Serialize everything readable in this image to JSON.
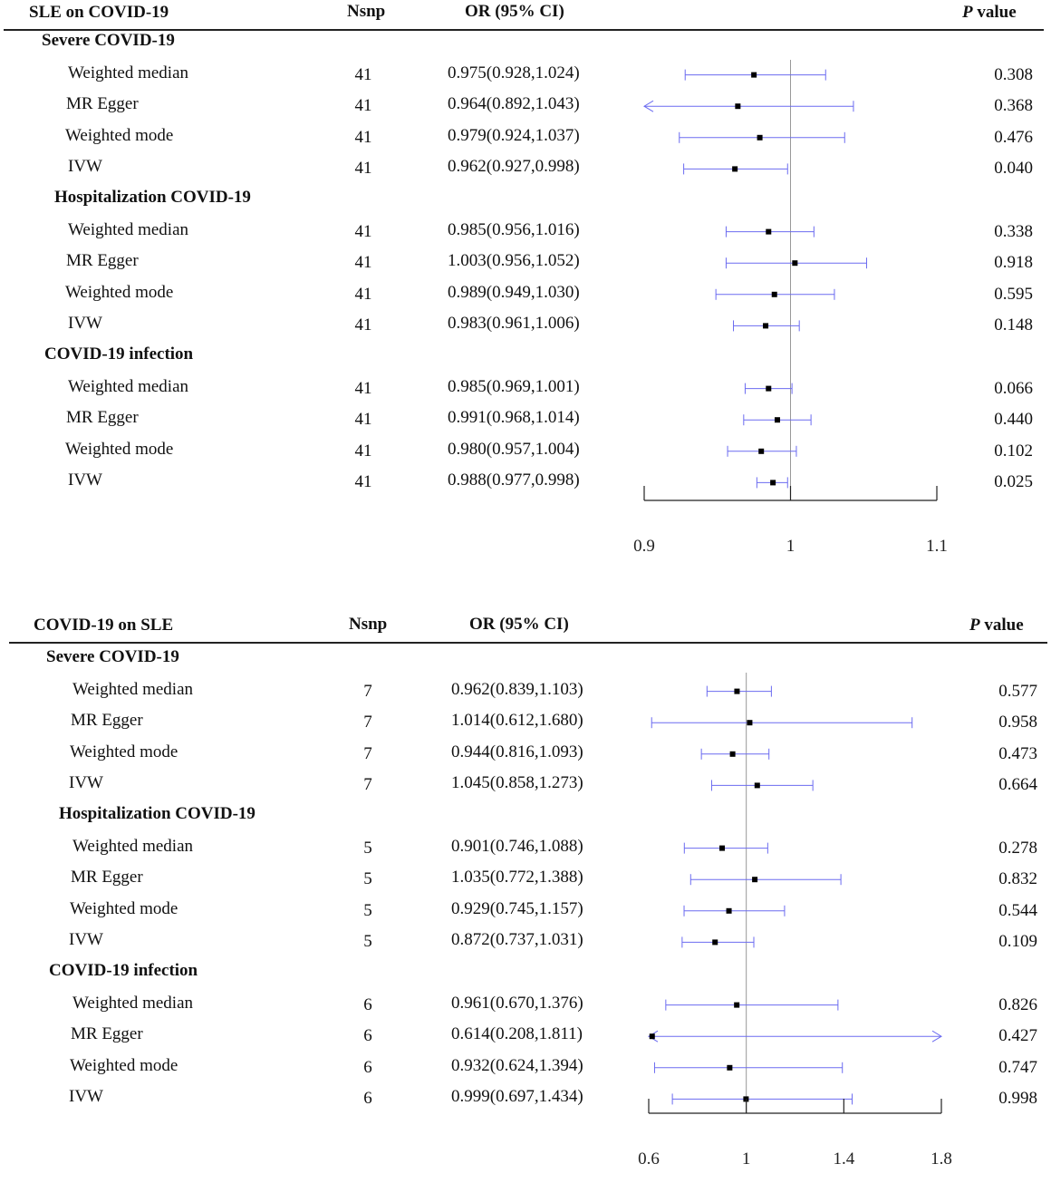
{
  "colors": {
    "ci_line": "#6b6bf0",
    "ref_line": "#999999",
    "point": "#000000",
    "axis": "#222222"
  },
  "chart_data": [
    {
      "type": "forest",
      "title": "SLE on COVID-19",
      "columns": {
        "nsnp": "Nsnp",
        "or": "OR (95% CI)",
        "p_italic": "P",
        "p_rest": " value"
      },
      "axis": {
        "min": 0.9,
        "max": 1.1,
        "ref": 1,
        "ticks": [
          0.9,
          1,
          1.1
        ],
        "tick_labels": [
          "0.9",
          "1",
          "1.1"
        ]
      },
      "groups": [
        {
          "name": "Severe COVID-19",
          "rows": [
            {
              "method": "Weighted median",
              "nsnp": "41",
              "or_text": "0.975(0.928,1.024)",
              "or": 0.975,
              "lo": 0.928,
              "hi": 1.024,
              "p": "0.308"
            },
            {
              "method": "MR Egger",
              "nsnp": "41",
              "or_text": "0.964(0.892,1.043)",
              "or": 0.964,
              "lo": 0.892,
              "hi": 1.043,
              "p": "0.368"
            },
            {
              "method": "Weighted mode",
              "nsnp": "41",
              "or_text": "0.979(0.924,1.037)",
              "or": 0.979,
              "lo": 0.924,
              "hi": 1.037,
              "p": "0.476"
            },
            {
              "method": "IVW",
              "nsnp": "41",
              "or_text": "0.962(0.927,0.998)",
              "or": 0.962,
              "lo": 0.927,
              "hi": 0.998,
              "p": "0.040"
            }
          ]
        },
        {
          "name": "Hospitalization COVID-19",
          "rows": [
            {
              "method": "Weighted median",
              "nsnp": "41",
              "or_text": "0.985(0.956,1.016)",
              "or": 0.985,
              "lo": 0.956,
              "hi": 1.016,
              "p": "0.338"
            },
            {
              "method": "MR Egger",
              "nsnp": "41",
              "or_text": "1.003(0.956,1.052)",
              "or": 1.003,
              "lo": 0.956,
              "hi": 1.052,
              "p": "0.918"
            },
            {
              "method": "Weighted mode",
              "nsnp": "41",
              "or_text": "0.989(0.949,1.030)",
              "or": 0.989,
              "lo": 0.949,
              "hi": 1.03,
              "p": "0.595"
            },
            {
              "method": "IVW",
              "nsnp": "41",
              "or_text": "0.983(0.961,1.006)",
              "or": 0.983,
              "lo": 0.961,
              "hi": 1.006,
              "p": "0.148"
            }
          ]
        },
        {
          "name": "COVID-19 infection",
          "rows": [
            {
              "method": "Weighted median",
              "nsnp": "41",
              "or_text": "0.985(0.969,1.001)",
              "or": 0.985,
              "lo": 0.969,
              "hi": 1.001,
              "p": "0.066"
            },
            {
              "method": "MR Egger",
              "nsnp": "41",
              "or_text": "0.991(0.968,1.014)",
              "or": 0.991,
              "lo": 0.968,
              "hi": 1.014,
              "p": "0.440"
            },
            {
              "method": "Weighted mode",
              "nsnp": "41",
              "or_text": "0.980(0.957,1.004)",
              "or": 0.98,
              "lo": 0.957,
              "hi": 1.004,
              "p": "0.102"
            },
            {
              "method": "IVW",
              "nsnp": "41",
              "or_text": "0.988(0.977,0.998)",
              "or": 0.988,
              "lo": 0.977,
              "hi": 0.998,
              "p": "0.025"
            }
          ]
        }
      ]
    },
    {
      "type": "forest",
      "title": "COVID-19 on SLE",
      "columns": {
        "nsnp": "Nsnp",
        "or": "OR (95% CI)",
        "p_italic": "P",
        "p_rest": " value"
      },
      "axis": {
        "min": 0.6,
        "max": 1.8,
        "ref": 1,
        "ticks": [
          0.6,
          1,
          1.4,
          1.8
        ],
        "tick_labels": [
          "0.6",
          "1",
          "1.4",
          "1.8"
        ]
      },
      "groups": [
        {
          "name": "Severe COVID-19",
          "rows": [
            {
              "method": "Weighted median",
              "nsnp": "7",
              "or_text": "0.962(0.839,1.103)",
              "or": 0.962,
              "lo": 0.839,
              "hi": 1.103,
              "p": "0.577"
            },
            {
              "method": "MR Egger",
              "nsnp": "7",
              "or_text": "1.014(0.612,1.680)",
              "or": 1.014,
              "lo": 0.612,
              "hi": 1.68,
              "p": "0.958"
            },
            {
              "method": "Weighted mode",
              "nsnp": "7",
              "or_text": "0.944(0.816,1.093)",
              "or": 0.944,
              "lo": 0.816,
              "hi": 1.093,
              "p": "0.473"
            },
            {
              "method": "IVW",
              "nsnp": "7",
              "or_text": "1.045(0.858,1.273)",
              "or": 1.045,
              "lo": 0.858,
              "hi": 1.273,
              "p": "0.664"
            }
          ]
        },
        {
          "name": "Hospitalization COVID-19",
          "rows": [
            {
              "method": "Weighted median",
              "nsnp": "5",
              "or_text": "0.901(0.746,1.088)",
              "or": 0.901,
              "lo": 0.746,
              "hi": 1.088,
              "p": "0.278"
            },
            {
              "method": "MR Egger",
              "nsnp": "5",
              "or_text": "1.035(0.772,1.388)",
              "or": 1.035,
              "lo": 0.772,
              "hi": 1.388,
              "p": "0.832"
            },
            {
              "method": "Weighted mode",
              "nsnp": "5",
              "or_text": "0.929(0.745,1.157)",
              "or": 0.929,
              "lo": 0.745,
              "hi": 1.157,
              "p": "0.544"
            },
            {
              "method": "IVW",
              "nsnp": "5",
              "or_text": "0.872(0.737,1.031)",
              "or": 0.872,
              "lo": 0.737,
              "hi": 1.031,
              "p": "0.109"
            }
          ]
        },
        {
          "name": "COVID-19 infection",
          "rows": [
            {
              "method": "Weighted median",
              "nsnp": "6",
              "or_text": "0.961(0.670,1.376)",
              "or": 0.961,
              "lo": 0.67,
              "hi": 1.376,
              "p": "0.826"
            },
            {
              "method": "MR Egger",
              "nsnp": "6",
              "or_text": "0.614(0.208,1.811)",
              "or": 0.614,
              "lo": 0.208,
              "hi": 1.811,
              "p": "0.427"
            },
            {
              "method": "Weighted mode",
              "nsnp": "6",
              "or_text": "0.932(0.624,1.394)",
              "or": 0.932,
              "lo": 0.624,
              "hi": 1.394,
              "p": "0.747"
            },
            {
              "method": "IVW",
              "nsnp": "6",
              "or_text": "0.999(0.697,1.434)",
              "or": 0.999,
              "lo": 0.697,
              "hi": 1.434,
              "p": "0.998"
            }
          ]
        }
      ]
    }
  ]
}
